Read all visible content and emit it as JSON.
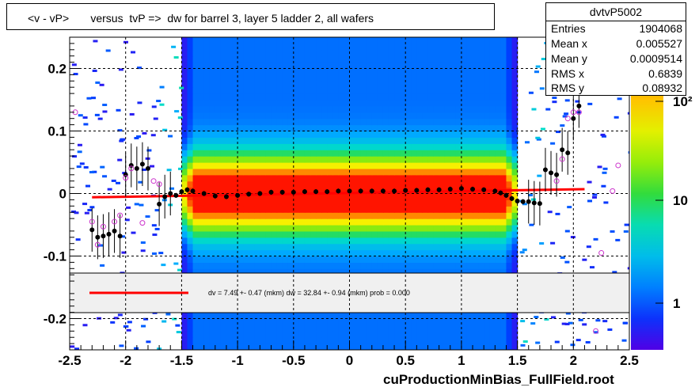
{
  "title": "<v - vP>       versus  tvP =>  dw for barrel 3, layer 5 ladder 2, all wafers",
  "stats": {
    "name": "dvtvP5002",
    "rows": [
      {
        "label": "Entries",
        "value": "1904068"
      },
      {
        "label": "Mean x",
        "value": "0.005527"
      },
      {
        "label": "Mean y",
        "value": "0.0009514"
      },
      {
        "label": "RMS x",
        "value": "0.6839"
      },
      {
        "label": "RMS y",
        "value": "0.08932"
      }
    ]
  },
  "fit_text": "dv =    7.49 +-  0.47 (mkm) dw =   32.84 +-  0.94 (mkm) prob = 0.000",
  "footer": "cuProductionMinBias_FullField.root",
  "colors": {
    "fit_line": "#ff0000",
    "profile_points": "#000000",
    "open_markers": "#cc33cc",
    "legend_bg": "#f0f0f0"
  },
  "chart_data": {
    "type": "heatmap",
    "xlim": [
      -2.5,
      2.5
    ],
    "ylim": [
      -0.25,
      0.25
    ],
    "x_ticks": [
      "-2.5",
      "-2",
      "-1.5",
      "-1",
      "-0.5",
      "0",
      "0.5",
      "1",
      "1.5",
      "2",
      "2.5"
    ],
    "y_ticks": [
      "0.2",
      "0.1",
      "0",
      "-0.1",
      "-0.2"
    ],
    "colorbar_ticks": [
      "10²",
      "10",
      "1"
    ],
    "grid": true,
    "profile": {
      "x": [
        -2.3,
        -2.25,
        -2.2,
        -2.15,
        -2.1,
        -2.05,
        -2.0,
        -1.95,
        -1.9,
        -1.85,
        -1.8,
        -1.7,
        -1.65,
        -1.6,
        -1.55,
        -1.5,
        -1.45,
        -1.4,
        -1.3,
        -1.2,
        -1.1,
        -1.0,
        -0.9,
        -0.8,
        -0.7,
        -0.6,
        -0.5,
        -0.4,
        -0.3,
        -0.2,
        -0.1,
        0.0,
        0.1,
        0.2,
        0.3,
        0.4,
        0.5,
        0.6,
        0.7,
        0.8,
        0.9,
        1.0,
        1.1,
        1.2,
        1.3,
        1.35,
        1.4,
        1.45,
        1.5,
        1.55,
        1.6,
        1.65,
        1.7,
        1.75,
        1.8,
        1.85,
        1.9,
        1.95,
        2.0,
        2.05
      ],
      "y": [
        -0.058,
        -0.07,
        -0.068,
        -0.065,
        -0.06,
        -0.068,
        0.03,
        0.045,
        0.04,
        0.047,
        0.04,
        -0.017,
        -0.005,
        0.0,
        -0.003,
        0.003,
        0.006,
        0.004,
        0.0,
        -0.004,
        -0.005,
        -0.003,
        -0.001,
        0.0,
        0.002,
        0.002,
        0.002,
        0.003,
        0.003,
        0.003,
        0.004,
        0.004,
        0.004,
        0.004,
        0.004,
        0.004,
        0.005,
        0.005,
        0.006,
        0.006,
        0.007,
        0.008,
        0.007,
        0.006,
        0.004,
        0.001,
        -0.003,
        -0.008,
        -0.012,
        -0.013,
        -0.013,
        -0.015,
        -0.016,
        0.038,
        0.033,
        0.03,
        0.07,
        0.065,
        0.12,
        0.14
      ]
    },
    "open_points": {
      "x": [
        -2.45,
        -2.3,
        -2.25,
        -2.2,
        -2.1,
        -2.05,
        -2.0,
        -1.95,
        -1.85,
        -1.75,
        -1.7,
        1.85,
        1.9,
        1.95,
        2.0,
        2.05,
        2.2,
        2.25,
        2.35,
        2.4
      ],
      "y": [
        0.13,
        -0.045,
        -0.082,
        -0.053,
        -0.045,
        -0.035,
        0.025,
        0.04,
        -0.047,
        0.02,
        0.015,
        0.02,
        0.055,
        0.12,
        0.13,
        0.13,
        -0.22,
        -0.095,
        0.004,
        0.045
      ]
    },
    "fit_line": {
      "x": [
        -2.3,
        2.1
      ],
      "y": [
        -0.006,
        0.007
      ]
    }
  }
}
